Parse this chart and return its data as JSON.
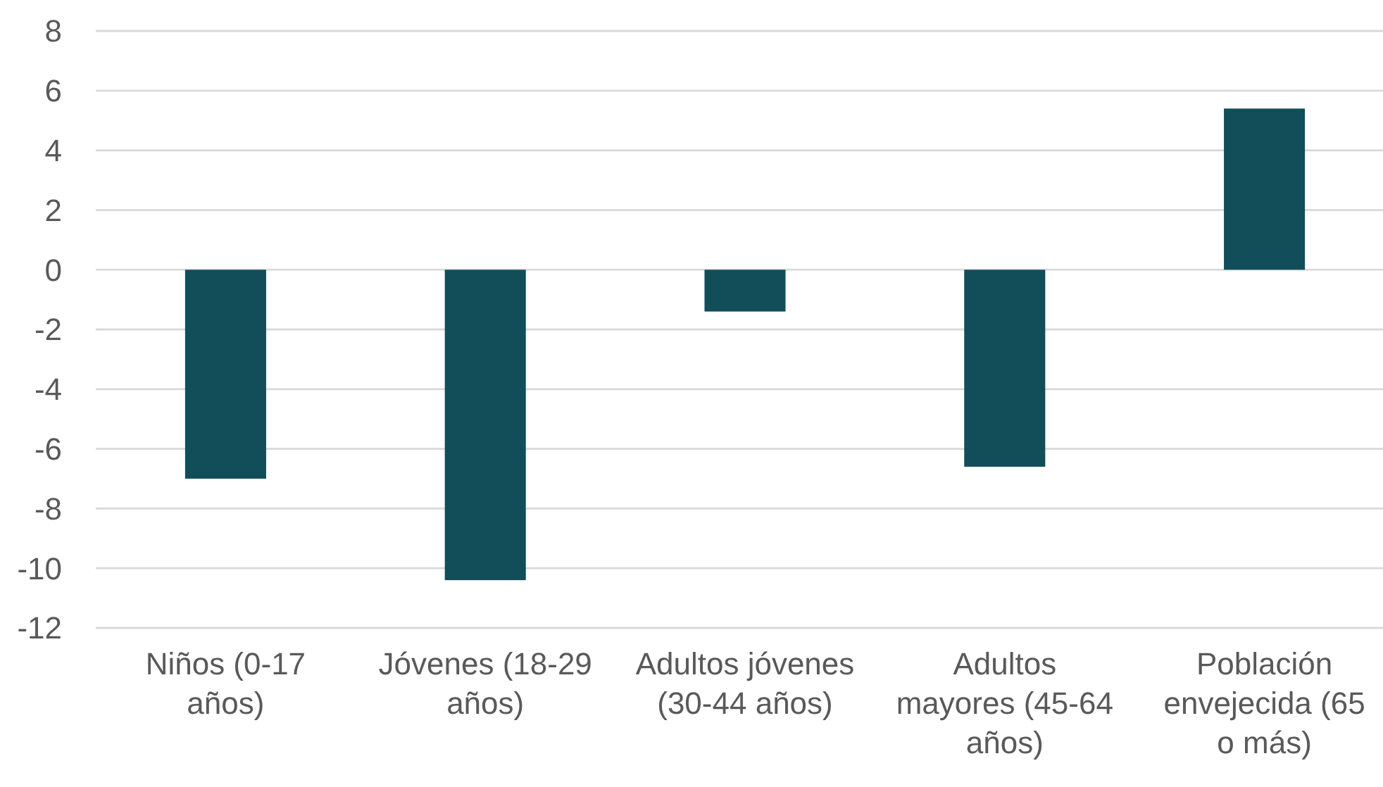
{
  "chart_data": {
    "type": "bar",
    "categories": [
      "Niños (0-17 años)",
      "Jóvenes (18-29 años)",
      "Adultos jóvenes (30-44 años)",
      "Adultos mayores (45-64 años)",
      "Población envejecida (65 o más)"
    ],
    "values": [
      -7.0,
      -10.4,
      -1.4,
      -6.6,
      5.4
    ],
    "color": "#124d5a",
    "ylim": [
      -12,
      8
    ],
    "yticks": [
      -12,
      -10,
      -8,
      -6,
      -4,
      -2,
      0,
      2,
      4,
      6,
      8
    ],
    "grid": "y"
  }
}
